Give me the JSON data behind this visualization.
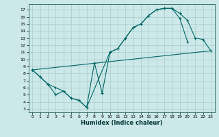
{
  "xlabel": "Humidex (Indice chaleur)",
  "bg_color": "#cce8e8",
  "grid_color": "#aacccc",
  "line_color": "#006666",
  "xlim": [
    -0.5,
    23.5
  ],
  "ylim": [
    2.5,
    17.8
  ],
  "xticks": [
    0,
    1,
    2,
    3,
    4,
    5,
    6,
    7,
    8,
    9,
    10,
    11,
    12,
    13,
    14,
    15,
    16,
    17,
    18,
    19,
    20,
    21,
    22,
    23
  ],
  "yticks": [
    3,
    4,
    5,
    6,
    7,
    8,
    9,
    10,
    11,
    12,
    13,
    14,
    15,
    16,
    17
  ],
  "line1_x": [
    0,
    1,
    2,
    3,
    4,
    5,
    6,
    7,
    8,
    9,
    10,
    11,
    12,
    13,
    14,
    15,
    16,
    17,
    18,
    19,
    20
  ],
  "line1_y": [
    8.5,
    7.5,
    6.5,
    5.0,
    5.5,
    4.5,
    4.2,
    3.2,
    9.5,
    5.2,
    11.0,
    11.5,
    13.0,
    14.5,
    15.0,
    16.2,
    17.0,
    17.2,
    17.2,
    15.8,
    12.5
  ],
  "line2_x": [
    0,
    1,
    2,
    3,
    4,
    5,
    6,
    7,
    10,
    11,
    12,
    13,
    14,
    15,
    16,
    17,
    18,
    19,
    20,
    21,
    22,
    23
  ],
  "line2_y": [
    8.5,
    7.5,
    6.5,
    6.0,
    5.5,
    4.5,
    4.2,
    3.2,
    11.0,
    11.5,
    13.0,
    14.5,
    15.0,
    16.2,
    17.0,
    17.2,
    17.2,
    16.5,
    15.5,
    13.0,
    12.8,
    11.2
  ],
  "line3_x": [
    0,
    23
  ],
  "line3_y": [
    8.5,
    11.2
  ]
}
